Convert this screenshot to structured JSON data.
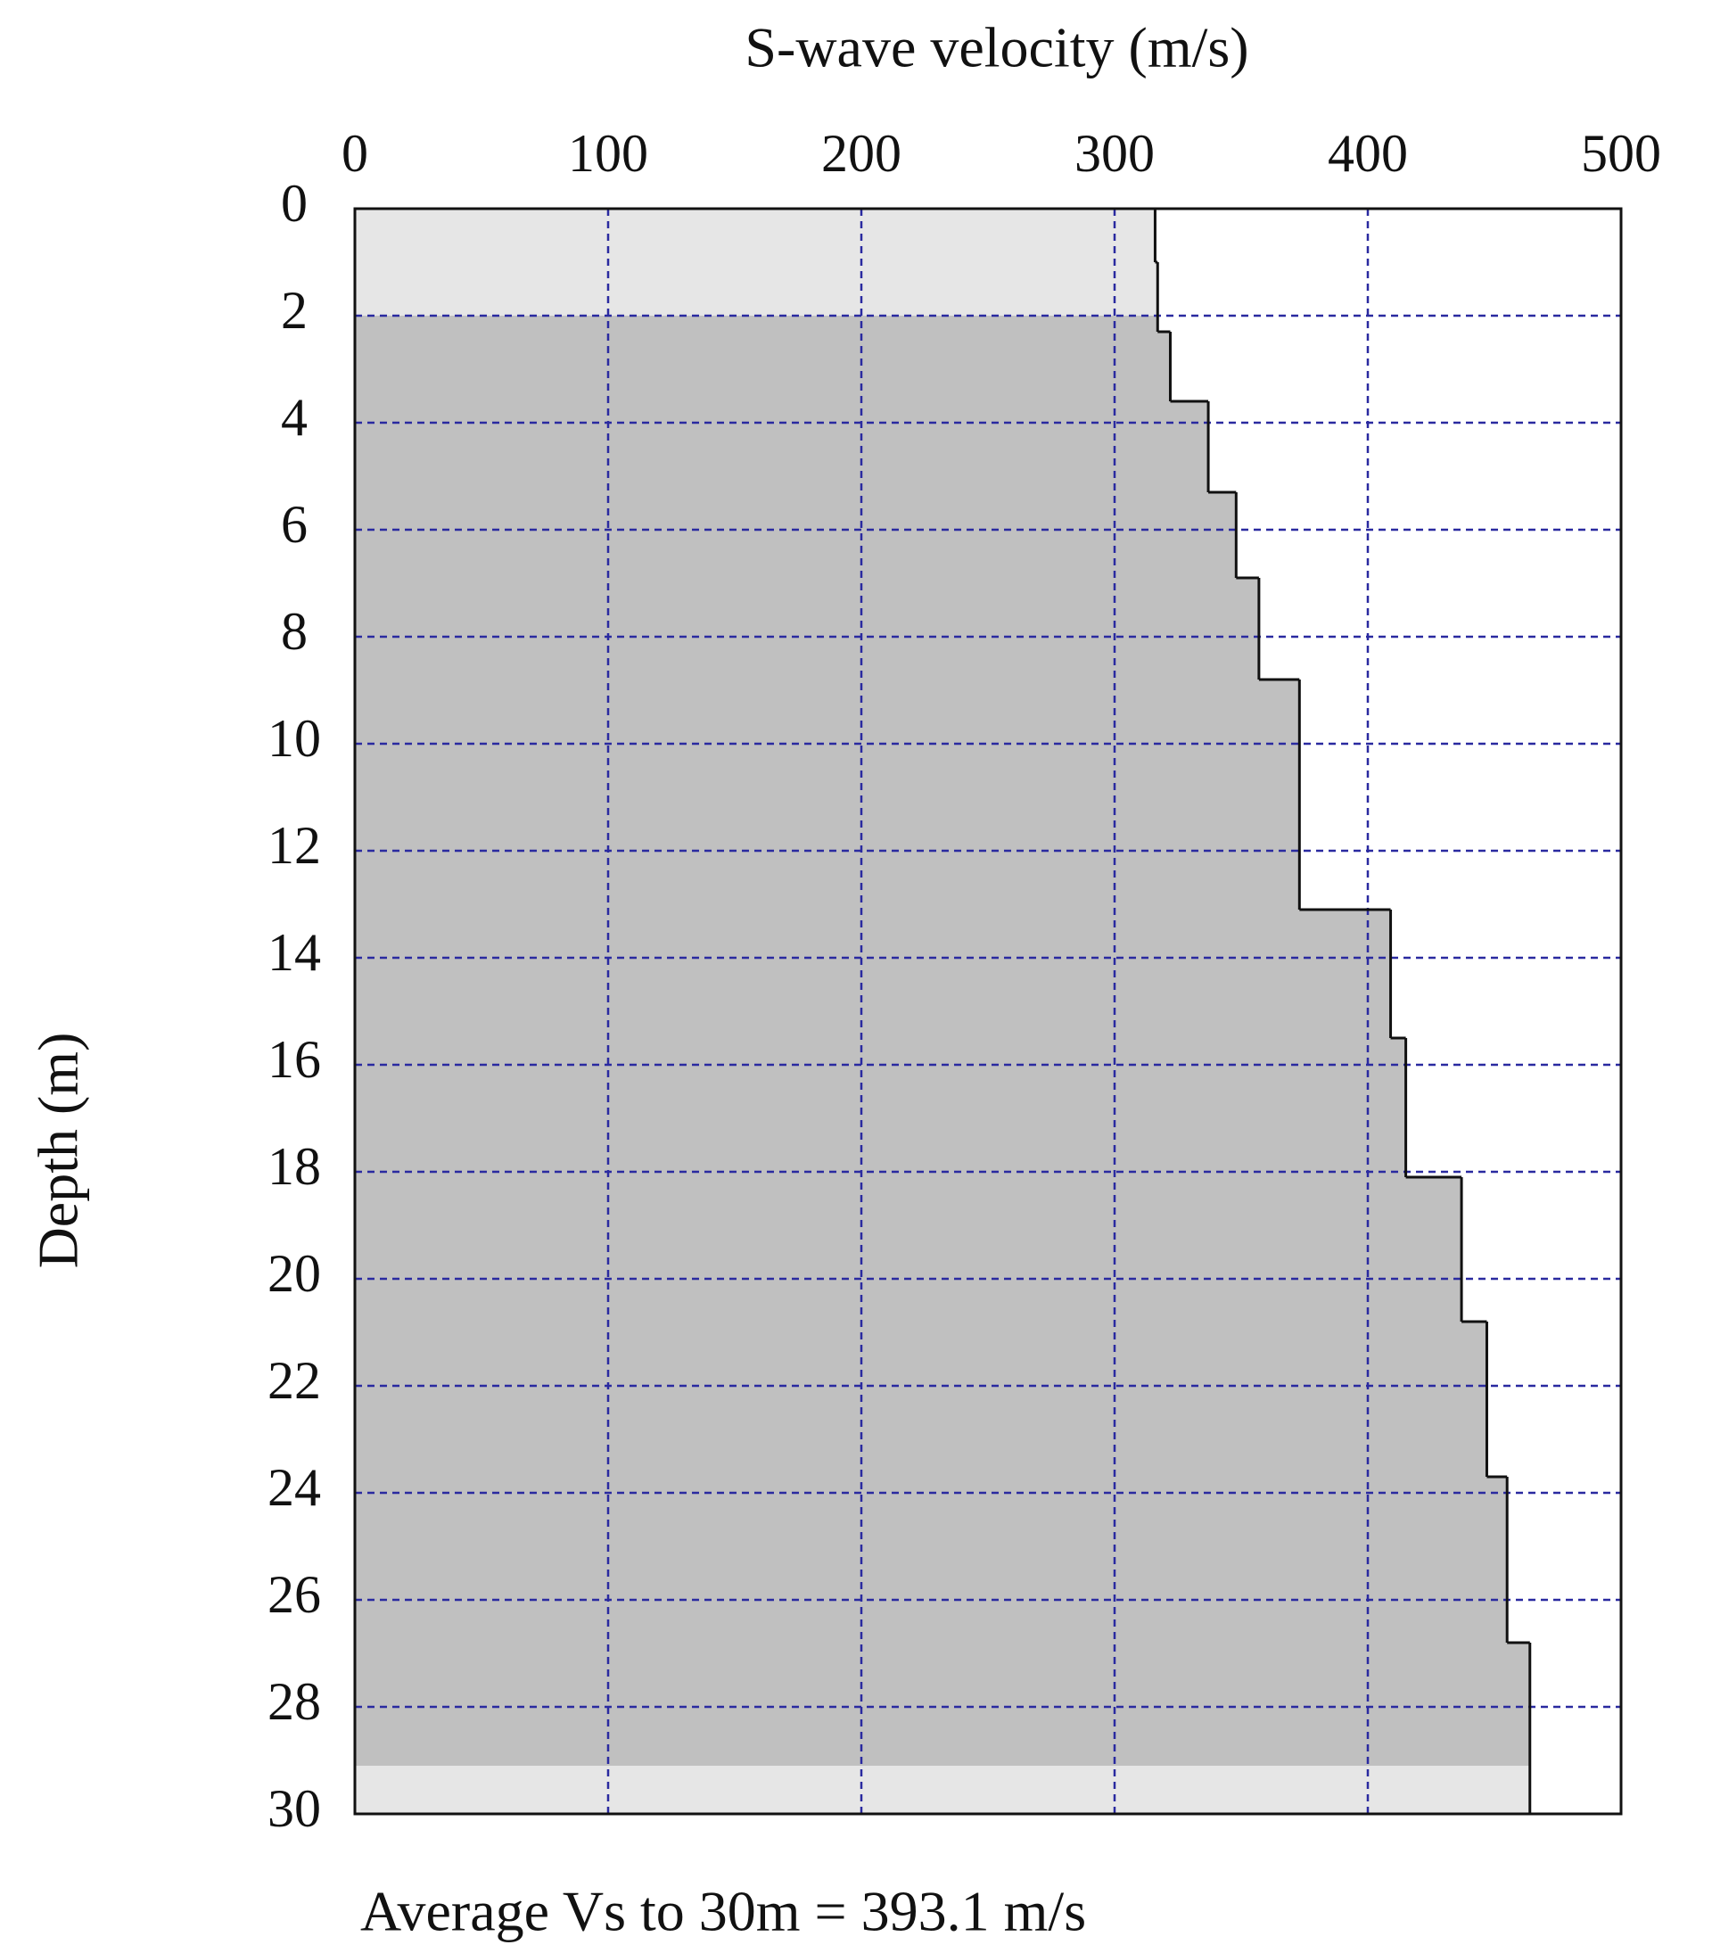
{
  "chart_data": {
    "type": "step-profile",
    "x_label": "S-wave velocity (m/s)",
    "y_label": "Depth (m)",
    "annotation": "Average Vs to 30m = 393.1 m/s",
    "depths": [
      0,
      1,
      2.3,
      3.6,
      5.3,
      6.9,
      8.8,
      13.1,
      15.5,
      18.1,
      20.8,
      23.7,
      26.8,
      30
    ],
    "values": [
      316,
      317,
      322,
      337,
      348,
      357,
      373,
      409,
      415,
      437,
      447,
      455,
      464
    ],
    "shaded_depth": [
      2,
      29.1
    ],
    "xlim": [
      0,
      500
    ],
    "xticks": [
      0,
      100,
      200,
      300,
      400,
      500
    ],
    "ylim": [
      0,
      30
    ],
    "yticks": [
      0,
      2,
      4,
      6,
      8,
      10,
      12,
      14,
      16,
      18,
      20,
      22,
      24,
      26,
      28,
      30
    ],
    "grid": true,
    "color": "#c0c0c0",
    "light_color": "#e6e6e6",
    "grid_color": "#2a2aa0",
    "line_color": "#111111"
  }
}
